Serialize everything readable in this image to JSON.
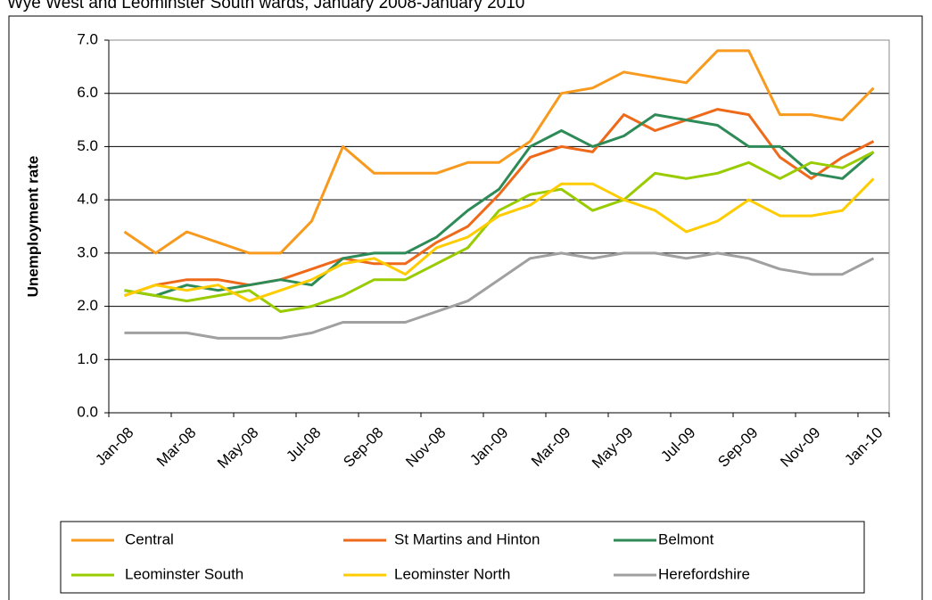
{
  "chart_data": {
    "type": "line",
    "title": "Wye West and Leominster South wards, January 2008-January 2010",
    "ylabel": "Unemployment rate",
    "categories": [
      "Jan-08",
      null,
      "Mar-08",
      null,
      "May-08",
      null,
      "Jul-08",
      null,
      "Sep-08",
      null,
      "Nov-08",
      null,
      "Jan-09",
      null,
      "Mar-09",
      null,
      "May-09",
      null,
      "Jul-09",
      null,
      "Sep-09",
      null,
      "Nov-09",
      null,
      "Jan-10"
    ],
    "series": [
      {
        "name": "Central",
        "color": "#f79a1e",
        "values": [
          3.4,
          3.0,
          3.4,
          3.2,
          3.0,
          3.0,
          3.6,
          5.0,
          4.5,
          4.5,
          4.5,
          4.7,
          4.7,
          5.1,
          6.0,
          6.1,
          6.4,
          6.3,
          6.2,
          6.8,
          6.8,
          5.6,
          5.6,
          5.5,
          6.1
        ]
      },
      {
        "name": "St Martins and Hinton",
        "color": "#ee6a1a",
        "values": [
          2.2,
          2.4,
          2.5,
          2.5,
          2.4,
          2.5,
          2.7,
          2.9,
          2.8,
          2.8,
          3.2,
          3.5,
          4.1,
          4.8,
          5.0,
          4.9,
          5.6,
          5.3,
          5.5,
          5.7,
          5.6,
          4.8,
          4.4,
          4.8,
          5.1
        ]
      },
      {
        "name": "Belmont",
        "color": "#2e8b57",
        "values": [
          2.3,
          2.2,
          2.4,
          2.3,
          2.4,
          2.5,
          2.4,
          2.9,
          3.0,
          3.0,
          3.3,
          3.8,
          4.2,
          5.0,
          5.3,
          5.0,
          5.2,
          5.6,
          5.5,
          5.4,
          5.0,
          5.0,
          4.5,
          4.4,
          4.9
        ]
      },
      {
        "name": "Leominster South",
        "color": "#99cc00",
        "values": [
          2.3,
          2.2,
          2.1,
          2.2,
          2.3,
          1.9,
          2.0,
          2.2,
          2.5,
          2.5,
          2.8,
          3.1,
          3.8,
          4.1,
          4.2,
          3.8,
          4.0,
          4.5,
          4.4,
          4.5,
          4.7,
          4.4,
          4.7,
          4.6,
          4.9
        ]
      },
      {
        "name": "Leominster North",
        "color": "#ffcc00",
        "values": [
          2.2,
          2.4,
          2.3,
          2.4,
          2.1,
          2.3,
          2.5,
          2.8,
          2.9,
          2.6,
          3.1,
          3.3,
          3.7,
          3.9,
          4.3,
          4.3,
          4.0,
          3.8,
          3.4,
          3.6,
          4.0,
          3.7,
          3.7,
          3.8,
          4.4
        ]
      },
      {
        "name": "Herefordshire",
        "color": "#a0a0a0",
        "values": [
          1.5,
          1.5,
          1.5,
          1.4,
          1.4,
          1.4,
          1.5,
          1.7,
          1.7,
          1.7,
          1.9,
          2.1,
          2.5,
          2.9,
          3.0,
          2.9,
          3.0,
          3.0,
          2.9,
          3.0,
          2.9,
          2.7,
          2.6,
          2.6,
          2.9
        ]
      }
    ],
    "ylim": [
      0,
      7
    ],
    "yticks": [
      {
        "value": 0,
        "label": "0.0"
      },
      {
        "value": 1,
        "label": "1.0"
      },
      {
        "value": 2,
        "label": "2.0"
      },
      {
        "value": 3,
        "label": "3.0"
      },
      {
        "value": 4,
        "label": "4.0"
      },
      {
        "value": 5,
        "label": "5.0"
      },
      {
        "value": 6,
        "label": "6.0"
      },
      {
        "value": 7,
        "label": "7.0"
      }
    ],
    "grid": true,
    "legend": "bottom"
  }
}
